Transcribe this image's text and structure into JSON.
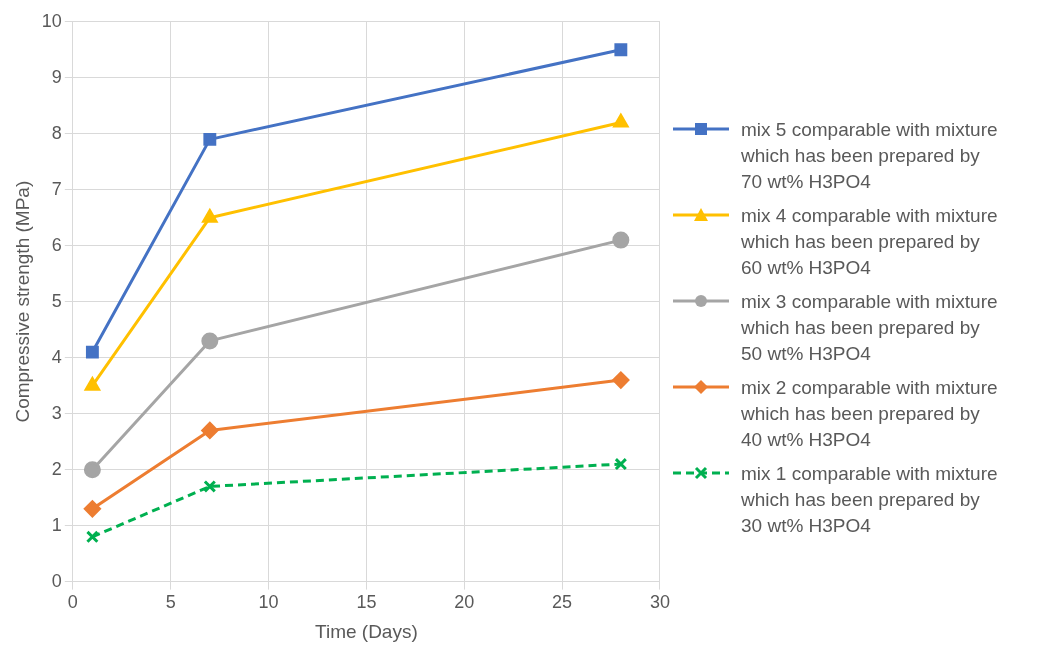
{
  "chart_data": {
    "type": "line",
    "xlabel": "Time (Days)",
    "ylabel": "Compressive strength (MPa)",
    "x": [
      1,
      7,
      28
    ],
    "xlim": [
      0,
      30
    ],
    "xticks": [
      0,
      5,
      10,
      15,
      20,
      25,
      30
    ],
    "ylim": [
      0,
      10
    ],
    "yticks": [
      0,
      1,
      2,
      3,
      4,
      5,
      6,
      7,
      8,
      9,
      10
    ],
    "grid": true,
    "legend": "right",
    "series": [
      {
        "name": "mix 5 comparable with mixture which has been prepared by 70 wt% H3PO4",
        "color": "#4472c4",
        "values": [
          4.1,
          7.9,
          9.5
        ],
        "marker": "square",
        "line_style": "solid"
      },
      {
        "name": "mix 4 comparable with mixture which has been prepared by 60 wt% H3PO4",
        "color": "#ffc000",
        "values": [
          3.5,
          6.5,
          8.2
        ],
        "marker": "triangle",
        "line_style": "solid"
      },
      {
        "name": "mix 3 comparable with mixture which has been prepared by 50 wt% H3PO4",
        "color": "#a5a5a5",
        "values": [
          2.0,
          4.3,
          6.1
        ],
        "marker": "circle",
        "line_style": "solid"
      },
      {
        "name": "mix 2 comparable with mixture which has been prepared by 40 wt% H3PO4",
        "color": "#ed7d31",
        "values": [
          1.3,
          2.7,
          3.6
        ],
        "marker": "diamond",
        "line_style": "solid"
      },
      {
        "name": "mix 1 comparable with mixture which has been prepared by 30 wt% H3PO4",
        "color": "#00b050",
        "values": [
          0.8,
          1.7,
          2.1
        ],
        "marker": "cross",
        "line_style": "dashed"
      }
    ]
  }
}
